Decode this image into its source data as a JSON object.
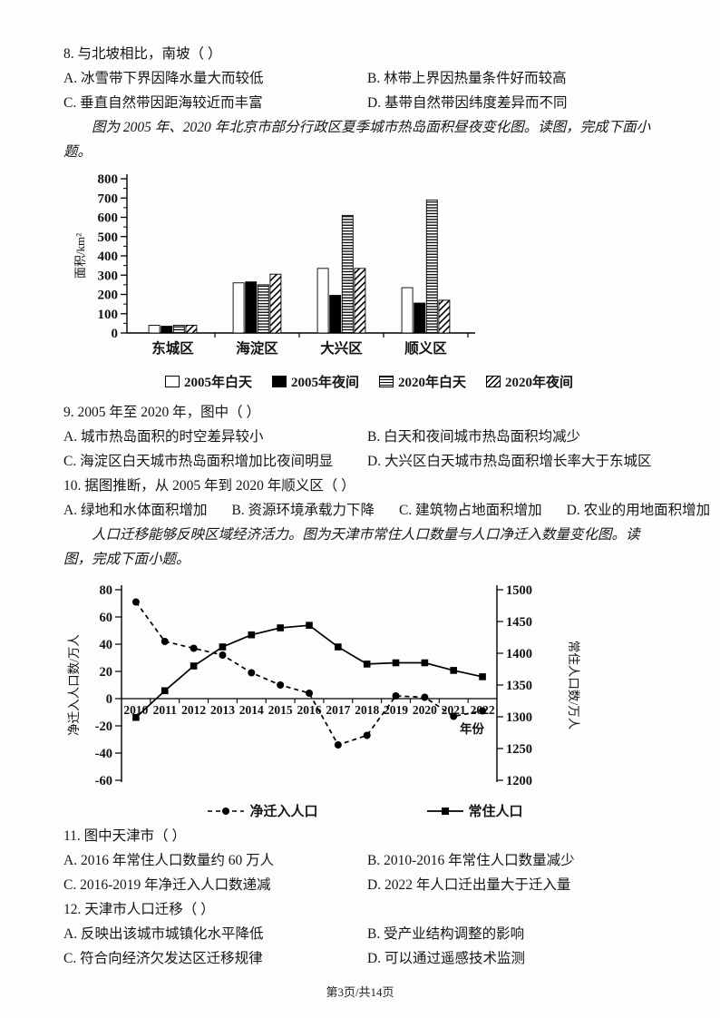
{
  "q8": {
    "stem": "8. 与北坡相比，南坡（  ）",
    "a": "A. 冰雪带下界因降水量大而较低",
    "b": "B. 林带上界因热量条件好而较高",
    "c": "C. 垂直自然带因距海较近而丰富",
    "d": "D. 基带自然带因纬度差异而不同"
  },
  "intro1": "图为 2005 年、2020 年北京市部分行政区夏季城市热岛面积昼夜变化图。读图，完成下面小题。",
  "q9": {
    "stem": "9. 2005 年至 2020 年，图中（  ）",
    "a": "A. 城市热岛面积的时空差异较小",
    "b": "B. 白天和夜间城市热岛面积均减少",
    "c": "C. 海淀区白天城市热岛面积增加比夜间明显",
    "d": "D. 大兴区白天城市热岛面积增长率大于东城区"
  },
  "q10": {
    "stem": "10. 据图推断，从 2005 年到 2020 年顺义区（  ）",
    "a": "A. 绿地和水体面积增加",
    "b": "B. 资源环境承载力下降",
    "c": "C. 建筑物占地面积增加",
    "d": "D. 农业的用地面积增加"
  },
  "intro2": "人口迁移能够反映区域经济活力。图为天津市常住人口数量与人口净迁入数量变化图。读图，完成下面小题。",
  "q11": {
    "stem": "11. 图中天津市（  ）",
    "a": "A. 2016 年常住人口数量约 60 万人",
    "b": "B. 2010-2016 年常住人口数量减少",
    "c": "C. 2016-2019 年净迁入人口数递减",
    "d": "D. 2022 年人口迁出量大于迁入量"
  },
  "q12": {
    "stem": "12. 天津市人口迁移（  ）",
    "a": "A. 反映出该城市城镇化水平降低",
    "b": "B. 受产业结构调整的影响",
    "c": "C. 符合向经济欠发达区迁移规律",
    "d": "D. 可以通过遥感技术监测"
  },
  "footer": "第3页/共14页",
  "chart_data": [
    {
      "type": "bar",
      "title": "2005年、2020年北京市部分行政区夏季城市热岛面积昼夜变化",
      "ylabel": "面积/km²",
      "ylim": [
        0,
        800
      ],
      "ytick_step": 100,
      "grid": false,
      "legend_position": "bottom",
      "categories": [
        "东城区",
        "海淀区",
        "大兴区",
        "顺义区"
      ],
      "series": [
        {
          "name": "2005年白天",
          "fill": "white",
          "values": [
            40,
            260,
            335,
            235
          ]
        },
        {
          "name": "2005年夜间",
          "fill": "black",
          "values": [
            35,
            265,
            195,
            155
          ]
        },
        {
          "name": "2020年白天",
          "fill": "hstripe",
          "values": [
            40,
            250,
            610,
            690
          ]
        },
        {
          "name": "2020年夜间",
          "fill": "dstripe",
          "values": [
            40,
            305,
            335,
            170
          ]
        }
      ]
    },
    {
      "type": "line",
      "title": "天津市常住人口数量与人口净迁入数量变化",
      "xlabel": "年份",
      "ylabel_left": "净迁入人口数/万人",
      "ylabel_right": "常住人口数/万人",
      "ylim_left": [
        -60,
        80
      ],
      "ytick_step_left": 20,
      "ylim_right": [
        1200,
        1500
      ],
      "ytick_step_right": 50,
      "grid": false,
      "legend_position": "bottom",
      "x": [
        2010,
        2011,
        2012,
        2013,
        2014,
        2015,
        2016,
        2017,
        2018,
        2019,
        2020,
        2021,
        2022
      ],
      "series": [
        {
          "name": "净迁入人口",
          "axis": "left",
          "line": "dashed",
          "marker": "circle",
          "values": [
            71,
            42,
            37,
            32,
            19,
            10,
            4,
            -34,
            -27,
            2,
            1,
            -13,
            -9
          ]
        },
        {
          "name": "常住人口",
          "axis": "right",
          "line": "solid",
          "marker": "square",
          "values": [
            1299,
            1341,
            1380,
            1410,
            1429,
            1440,
            1444,
            1410,
            1383,
            1385,
            1385,
            1373,
            1363
          ]
        }
      ]
    }
  ]
}
